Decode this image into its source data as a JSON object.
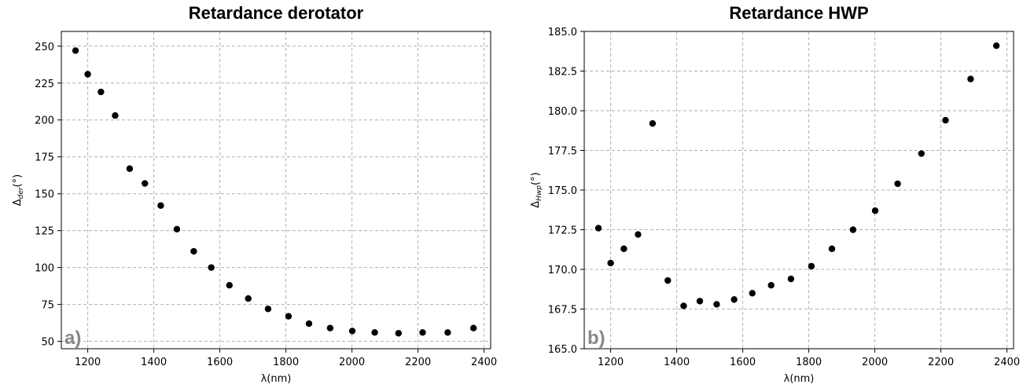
{
  "chart_data": [
    {
      "type": "scatter",
      "title": "Retardance derotator",
      "xlabel": "λ(nm)",
      "ylabel": {
        "main": "Δ",
        "sub": "der",
        "unit": "(°)"
      },
      "panel_label": "a)",
      "xlim": [
        1120,
        2420
      ],
      "ylim": [
        45,
        260
      ],
      "xticks": [
        1200,
        1400,
        1600,
        1800,
        2000,
        2200,
        2400
      ],
      "xtick_labels": [
        "1200",
        "1400",
        "1600",
        "1800",
        "2000",
        "2200",
        "2400"
      ],
      "yticks": [
        50,
        75,
        100,
        125,
        150,
        175,
        200,
        225,
        250
      ],
      "ytick_labels": [
        "50",
        "75",
        "100",
        "125",
        "150",
        "175",
        "200",
        "225",
        "250"
      ],
      "grid": true,
      "marker_color": "#000000",
      "x": [
        1163,
        1200,
        1240,
        1283,
        1327,
        1373,
        1421,
        1470,
        1521,
        1574,
        1629,
        1686,
        1746,
        1808,
        1870,
        1934,
        2001,
        2069,
        2141,
        2214,
        2290,
        2368
      ],
      "y": [
        247,
        231,
        219,
        203,
        167,
        157,
        142,
        126,
        111,
        100,
        88,
        79,
        72,
        67,
        62,
        59,
        57,
        56,
        55.5,
        56,
        56,
        59
      ]
    },
    {
      "type": "scatter",
      "title": "Retardance HWP",
      "xlabel": "λ(nm)",
      "ylabel": {
        "main": "Δ",
        "sub": "Hwp",
        "unit": "(°)"
      },
      "panel_label": "b)",
      "xlim": [
        1120,
        2420
      ],
      "ylim": [
        165,
        185
      ],
      "xticks": [
        1200,
        1400,
        1600,
        1800,
        2000,
        2200,
        2400
      ],
      "xtick_labels": [
        "1200",
        "1400",
        "1600",
        "1800",
        "2000",
        "2200",
        "2400"
      ],
      "yticks": [
        165,
        167.5,
        170,
        172.5,
        175,
        177.5,
        180,
        182.5,
        185
      ],
      "ytick_labels": [
        "165.0",
        "167.5",
        "170.0",
        "172.5",
        "175.0",
        "177.5",
        "180.0",
        "182.5",
        "185.0"
      ],
      "grid": true,
      "marker_color": "#000000",
      "x": [
        1163,
        1200,
        1240,
        1283,
        1327,
        1373,
        1421,
        1470,
        1521,
        1574,
        1629,
        1686,
        1746,
        1808,
        1870,
        1934,
        2001,
        2069,
        2141,
        2214,
        2290,
        2368
      ],
      "y": [
        172.6,
        170.4,
        171.3,
        172.2,
        179.2,
        169.3,
        167.7,
        168.0,
        167.8,
        168.1,
        168.5,
        169.0,
        169.4,
        170.2,
        171.3,
        172.5,
        173.7,
        175.4,
        177.3,
        179.4,
        182.0,
        184.1
      ]
    }
  ]
}
